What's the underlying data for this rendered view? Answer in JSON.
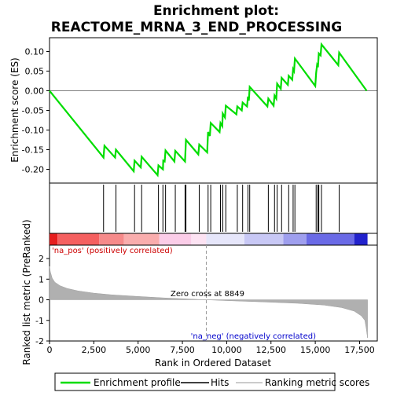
{
  "chart_data": {
    "type": "line",
    "title_line1": "Enrichment plot:",
    "title_line2": "REACTOME_MRNA_3_END_PROCESSING",
    "es_panel": {
      "ylabel": "Enrichment score (ES)",
      "ylim": [
        -0.235,
        0.135
      ],
      "yticks": [
        0.1,
        0.05,
        0.0,
        -0.05,
        -0.1,
        -0.15,
        -0.2
      ],
      "ytick_labels": [
        "0.10",
        "0.05",
        "0.00",
        "-0.05",
        "-0.10",
        "-0.15",
        "-0.20"
      ],
      "profile": [
        [
          0,
          0.0
        ],
        [
          3050,
          -0.17
        ],
        [
          3100,
          -0.14
        ],
        [
          3700,
          -0.17
        ],
        [
          3750,
          -0.15
        ],
        [
          4750,
          -0.205
        ],
        [
          4800,
          -0.178
        ],
        [
          5150,
          -0.195
        ],
        [
          5200,
          -0.168
        ],
        [
          6100,
          -0.215
        ],
        [
          6150,
          -0.19
        ],
        [
          6400,
          -0.2
        ],
        [
          6420,
          -0.178
        ],
        [
          6500,
          -0.18
        ],
        [
          6550,
          -0.152
        ],
        [
          7050,
          -0.18
        ],
        [
          7100,
          -0.153
        ],
        [
          7650,
          -0.18
        ],
        [
          7700,
          -0.125
        ],
        [
          8400,
          -0.162
        ],
        [
          8450,
          -0.137
        ],
        [
          8900,
          -0.157
        ],
        [
          8950,
          -0.105
        ],
        [
          9050,
          -0.115
        ],
        [
          9100,
          -0.082
        ],
        [
          9600,
          -0.105
        ],
        [
          9650,
          -0.082
        ],
        [
          9750,
          -0.09
        ],
        [
          9780,
          -0.058
        ],
        [
          9900,
          -0.068
        ],
        [
          9950,
          -0.038
        ],
        [
          10550,
          -0.06
        ],
        [
          10600,
          -0.04
        ],
        [
          10850,
          -0.05
        ],
        [
          10900,
          -0.03
        ],
        [
          11150,
          -0.04
        ],
        [
          11200,
          -0.015
        ],
        [
          11250,
          -0.025
        ],
        [
          11300,
          0.01
        ],
        [
          12300,
          -0.04
        ],
        [
          12350,
          -0.02
        ],
        [
          12650,
          -0.038
        ],
        [
          12700,
          -0.012
        ],
        [
          12800,
          -0.02
        ],
        [
          12850,
          0.018
        ],
        [
          13050,
          0.005
        ],
        [
          13100,
          0.033
        ],
        [
          13450,
          0.015
        ],
        [
          13500,
          0.038
        ],
        [
          13700,
          0.028
        ],
        [
          13750,
          0.055
        ],
        [
          13800,
          0.05
        ],
        [
          13850,
          0.082
        ],
        [
          15000,
          0.012
        ],
        [
          15050,
          0.045
        ],
        [
          15100,
          0.065
        ],
        [
          15150,
          0.06
        ],
        [
          15200,
          0.095
        ],
        [
          15300,
          0.09
        ],
        [
          15350,
          0.118
        ],
        [
          16300,
          0.065
        ],
        [
          16350,
          0.097
        ],
        [
          17900,
          0.0
        ]
      ]
    },
    "hits": [
      3050,
      3750,
      4800,
      5200,
      6150,
      6400,
      6550,
      7100,
      7650,
      7700,
      8450,
      8950,
      9100,
      9650,
      9780,
      9950,
      10600,
      10900,
      11200,
      11300,
      12350,
      12700,
      12850,
      13100,
      13500,
      13750,
      13850,
      15050,
      15150,
      15200,
      15350,
      16350
    ],
    "metric_panel": {
      "ylabel": "Ranked list metric (PreRanked)",
      "ylim": [
        -2.0,
        2.65
      ],
      "yticks": [
        2,
        1,
        0,
        -1,
        -2
      ],
      "ytick_labels": [
        "2",
        "1",
        "0",
        "-1",
        "-2"
      ],
      "curve": [
        [
          0,
          1.62
        ],
        [
          50,
          1.35
        ],
        [
          150,
          1.05
        ],
        [
          300,
          0.85
        ],
        [
          600,
          0.68
        ],
        [
          1000,
          0.55
        ],
        [
          1600,
          0.43
        ],
        [
          2500,
          0.32
        ],
        [
          3500,
          0.24
        ],
        [
          5000,
          0.16
        ],
        [
          6500,
          0.09
        ],
        [
          8000,
          0.03
        ],
        [
          8849,
          0.0
        ],
        [
          10000,
          -0.04
        ],
        [
          12000,
          -0.1
        ],
        [
          14000,
          -0.17
        ],
        [
          15500,
          -0.26
        ],
        [
          16500,
          -0.38
        ],
        [
          17200,
          -0.55
        ],
        [
          17600,
          -0.78
        ],
        [
          17800,
          -1.0
        ],
        [
          17880,
          -1.4
        ],
        [
          17950,
          -1.85
        ]
      ],
      "zero_cross_label": "Zero cross at 8849",
      "zero_cross": 8849,
      "pos_label": "'na_pos' (positively correlated)",
      "neg_label": "'na_neg' (negatively correlated)"
    },
    "xaxis": {
      "xlabel": "Rank in Ordered Dataset",
      "xlim": [
        0,
        18500
      ],
      "xticks": [
        0,
        2500,
        5000,
        7500,
        10000,
        12500,
        15000,
        17500
      ],
      "xtick_labels": [
        "0",
        "2,500",
        "5,000",
        "7,500",
        "10,000",
        "12,500",
        "15,000",
        "17,500"
      ],
      "n_genes": 17950
    },
    "legend": {
      "items": [
        {
          "label": "Enrichment profile",
          "kind": "line",
          "color": "#00dd00"
        },
        {
          "label": "Hits",
          "kind": "line",
          "color": "#000000"
        },
        {
          "label": "Ranking metric scores",
          "kind": "line",
          "color": "#bbbbbb"
        }
      ],
      "placement": "bottom"
    },
    "colors": {
      "profile": "#00dd00",
      "hits": "#000000",
      "metric_fill": "#b0b0b0",
      "pos_text": "#cc0000",
      "neg_text": "#0000cc",
      "zero_line": "#999999"
    },
    "color_bar": [
      {
        "from": 0,
        "to": 450,
        "color": "#e61e1e"
      },
      {
        "from": 450,
        "to": 2800,
        "color": "#f56060"
      },
      {
        "from": 2800,
        "to": 4200,
        "color": "#f68a8a"
      },
      {
        "from": 4200,
        "to": 6200,
        "color": "#f9adad"
      },
      {
        "from": 6200,
        "to": 8000,
        "color": "#fbcde8"
      },
      {
        "from": 8000,
        "to": 8849,
        "color": "#fde3f3"
      },
      {
        "from": 8849,
        "to": 11000,
        "color": "#e6e6fa"
      },
      {
        "from": 11000,
        "to": 13200,
        "color": "#c8c8f5"
      },
      {
        "from": 13200,
        "to": 14500,
        "color": "#9f9fee"
      },
      {
        "from": 14500,
        "to": 17200,
        "color": "#6a6ae6"
      },
      {
        "from": 17200,
        "to": 17950,
        "color": "#2222cc"
      }
    ]
  }
}
